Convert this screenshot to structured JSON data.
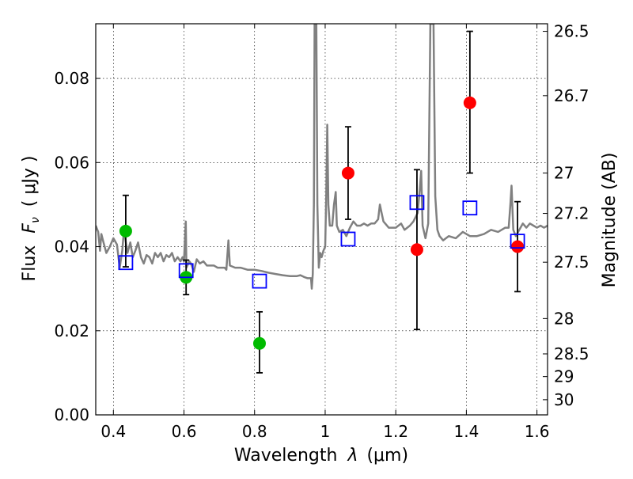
{
  "chart_data": {
    "type": "scatter",
    "xlabel_prefix": "Wavelength",
    "xlabel_symbol": "λ",
    "xlabel_unit": "(μm)",
    "ylabel_prefix": "Flux",
    "ylabel_symbol": "F",
    "ylabel_subscript": "ν",
    "ylabel_unit": "( μJy )",
    "y2label": "Magnitude (AB)",
    "xlim": [
      0.35,
      1.63
    ],
    "ylim": [
      0.0,
      0.093
    ],
    "grid": true,
    "x_ticks": [
      {
        "value": 0.4,
        "label": "0.4"
      },
      {
        "value": 0.6,
        "label": "0.6"
      },
      {
        "value": 0.8,
        "label": "0.8"
      },
      {
        "value": 1.0,
        "label": "1"
      },
      {
        "value": 1.2,
        "label": "1.2"
      },
      {
        "value": 1.4,
        "label": "1.4"
      },
      {
        "value": 1.6,
        "label": "1.6"
      }
    ],
    "y_ticks": [
      {
        "value": 0.0,
        "label": "0.00"
      },
      {
        "value": 0.02,
        "label": "0.02"
      },
      {
        "value": 0.04,
        "label": "0.04"
      },
      {
        "value": 0.06,
        "label": "0.06"
      },
      {
        "value": 0.08,
        "label": "0.08"
      }
    ],
    "y2_ticks": [
      {
        "flux": 0.0912,
        "label": "26.5"
      },
      {
        "flux": 0.0759,
        "label": "26.7"
      },
      {
        "flux": 0.0575,
        "label": "27"
      },
      {
        "flux": 0.0479,
        "label": "27.2"
      },
      {
        "flux": 0.0363,
        "label": "27.5"
      },
      {
        "flux": 0.0229,
        "label": "28"
      },
      {
        "flux": 0.0145,
        "label": "28.5"
      },
      {
        "flux": 0.0091,
        "label": "29"
      },
      {
        "flux": 0.0036,
        "label": "30"
      }
    ],
    "colors": {
      "spectrum": "#808080",
      "green": "#00bb00",
      "red": "#ff0000",
      "model": "#0000ff",
      "errorbar": "#000000"
    },
    "series": [
      {
        "type": "line",
        "points": [
          [
            0.35,
            0.045
          ],
          [
            0.357,
            0.0435
          ],
          [
            0.362,
            0.039
          ],
          [
            0.366,
            0.043
          ],
          [
            0.372,
            0.041
          ],
          [
            0.38,
            0.0385
          ],
          [
            0.39,
            0.04
          ],
          [
            0.4,
            0.042
          ],
          [
            0.41,
            0.0405
          ],
          [
            0.418,
            0.035
          ],
          [
            0.425,
            0.039
          ],
          [
            0.43,
            0.044
          ],
          [
            0.44,
            0.0385
          ],
          [
            0.448,
            0.041
          ],
          [
            0.455,
            0.0375
          ],
          [
            0.462,
            0.039
          ],
          [
            0.47,
            0.041
          ],
          [
            0.478,
            0.0375
          ],
          [
            0.486,
            0.036
          ],
          [
            0.494,
            0.038
          ],
          [
            0.502,
            0.0375
          ],
          [
            0.51,
            0.036
          ],
          [
            0.518,
            0.0385
          ],
          [
            0.526,
            0.0375
          ],
          [
            0.534,
            0.0385
          ],
          [
            0.542,
            0.0365
          ],
          [
            0.55,
            0.038
          ],
          [
            0.558,
            0.0375
          ],
          [
            0.566,
            0.0385
          ],
          [
            0.574,
            0.0365
          ],
          [
            0.582,
            0.0375
          ],
          [
            0.59,
            0.0365
          ],
          [
            0.596,
            0.0375
          ],
          [
            0.6,
            0.0365
          ],
          [
            0.605,
            0.046
          ],
          [
            0.607,
            0.035
          ],
          [
            0.615,
            0.0365
          ],
          [
            0.62,
            0.036
          ],
          [
            0.628,
            0.034
          ],
          [
            0.636,
            0.037
          ],
          [
            0.645,
            0.036
          ],
          [
            0.655,
            0.0365
          ],
          [
            0.665,
            0.0355
          ],
          [
            0.675,
            0.0355
          ],
          [
            0.685,
            0.0355
          ],
          [
            0.695,
            0.035
          ],
          [
            0.705,
            0.035
          ],
          [
            0.715,
            0.035
          ],
          [
            0.72,
            0.0345
          ],
          [
            0.726,
            0.0415
          ],
          [
            0.73,
            0.0355
          ],
          [
            0.745,
            0.035
          ],
          [
            0.76,
            0.035
          ],
          [
            0.78,
            0.0345
          ],
          [
            0.8,
            0.0345
          ],
          [
            0.82,
            0.0342
          ],
          [
            0.84,
            0.0338
          ],
          [
            0.86,
            0.0335
          ],
          [
            0.88,
            0.0332
          ],
          [
            0.9,
            0.033
          ],
          [
            0.92,
            0.033
          ],
          [
            0.93,
            0.0332
          ],
          [
            0.94,
            0.0328
          ],
          [
            0.95,
            0.0325
          ],
          [
            0.96,
            0.0325
          ],
          [
            0.962,
            0.03
          ],
          [
            0.965,
            0.0335
          ],
          [
            0.968,
            0.05
          ],
          [
            0.97,
            0.093
          ],
          [
            0.975,
            0.093
          ],
          [
            0.978,
            0.05
          ],
          [
            0.982,
            0.035
          ],
          [
            0.986,
            0.0385
          ],
          [
            0.99,
            0.0375
          ],
          [
            0.995,
            0.039
          ],
          [
            1.0,
            0.04
          ],
          [
            1.003,
            0.052
          ],
          [
            1.006,
            0.069
          ],
          [
            1.009,
            0.05
          ],
          [
            1.013,
            0.045
          ],
          [
            1.02,
            0.045
          ],
          [
            1.025,
            0.05
          ],
          [
            1.03,
            0.053
          ],
          [
            1.033,
            0.045
          ],
          [
            1.04,
            0.0435
          ],
          [
            1.05,
            0.044
          ],
          [
            1.06,
            0.0425
          ],
          [
            1.07,
            0.0445
          ],
          [
            1.08,
            0.046
          ],
          [
            1.09,
            0.045
          ],
          [
            1.1,
            0.045
          ],
          [
            1.11,
            0.0455
          ],
          [
            1.12,
            0.045
          ],
          [
            1.13,
            0.0455
          ],
          [
            1.14,
            0.0455
          ],
          [
            1.15,
            0.0465
          ],
          [
            1.155,
            0.05
          ],
          [
            1.16,
            0.048
          ],
          [
            1.165,
            0.046
          ],
          [
            1.18,
            0.0445
          ],
          [
            1.2,
            0.0445
          ],
          [
            1.215,
            0.0455
          ],
          [
            1.225,
            0.044
          ],
          [
            1.24,
            0.045
          ],
          [
            1.25,
            0.046
          ],
          [
            1.262,
            0.048
          ],
          [
            1.268,
            0.0535
          ],
          [
            1.272,
            0.058
          ],
          [
            1.276,
            0.045
          ],
          [
            1.284,
            0.042
          ],
          [
            1.292,
            0.0455
          ],
          [
            1.298,
            0.093
          ],
          [
            1.307,
            0.093
          ],
          [
            1.312,
            0.052
          ],
          [
            1.318,
            0.044
          ],
          [
            1.324,
            0.0425
          ],
          [
            1.334,
            0.0415
          ],
          [
            1.35,
            0.0425
          ],
          [
            1.37,
            0.042
          ],
          [
            1.39,
            0.0435
          ],
          [
            1.41,
            0.0425
          ],
          [
            1.43,
            0.0425
          ],
          [
            1.45,
            0.043
          ],
          [
            1.47,
            0.044
          ],
          [
            1.49,
            0.0435
          ],
          [
            1.51,
            0.0445
          ],
          [
            1.52,
            0.0445
          ],
          [
            1.525,
            0.0505
          ],
          [
            1.528,
            0.0545
          ],
          [
            1.533,
            0.044
          ],
          [
            1.54,
            0.0425
          ],
          [
            1.55,
            0.044
          ],
          [
            1.56,
            0.0455
          ],
          [
            1.57,
            0.0445
          ],
          [
            1.58,
            0.0455
          ],
          [
            1.59,
            0.045
          ],
          [
            1.6,
            0.0445
          ],
          [
            1.61,
            0.045
          ],
          [
            1.62,
            0.0445
          ],
          [
            1.63,
            0.045
          ]
        ]
      },
      {
        "type": "scatter",
        "color": "green",
        "points": [
          {
            "x": 0.435,
            "y": 0.0437,
            "err_low": 0.0085,
            "err_high": 0.0085
          },
          {
            "x": 0.606,
            "y": 0.0327,
            "err_low": 0.0041,
            "err_high": 0.0041
          },
          {
            "x": 0.814,
            "y": 0.017,
            "err_low": 0.007,
            "err_high": 0.0075
          }
        ]
      },
      {
        "type": "scatter",
        "color": "red",
        "points": [
          {
            "x": 1.065,
            "y": 0.0575,
            "err_low": 0.011,
            "err_high": 0.011
          },
          {
            "x": 1.26,
            "y": 0.0393,
            "err_low": 0.019,
            "err_high": 0.019
          },
          {
            "x": 1.41,
            "y": 0.0742,
            "err_low": 0.0167,
            "err_high": 0.017
          },
          {
            "x": 1.545,
            "y": 0.04,
            "err_low": 0.0107,
            "err_high": 0.0107
          }
        ]
      },
      {
        "type": "scatter",
        "color": "model",
        "marker": "open-square",
        "points": [
          {
            "x": 0.435,
            "y": 0.0362
          },
          {
            "x": 0.606,
            "y": 0.0343
          },
          {
            "x": 0.814,
            "y": 0.0318
          },
          {
            "x": 1.065,
            "y": 0.0418
          },
          {
            "x": 1.26,
            "y": 0.0505
          },
          {
            "x": 1.41,
            "y": 0.0492
          },
          {
            "x": 1.545,
            "y": 0.0413
          }
        ]
      }
    ]
  }
}
